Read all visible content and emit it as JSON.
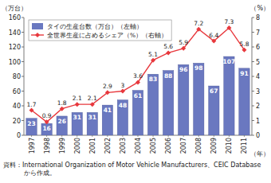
{
  "chart_data": {
    "type": "bar",
    "categories": [
      "1997",
      "1998",
      "1999",
      "2000",
      "2001",
      "2002",
      "2003",
      "2004",
      "2005",
      "2006",
      "2007",
      "2008",
      "2009",
      "2010",
      "2011"
    ],
    "series": [
      {
        "name": "タイの生産台数（万台）（左軸）",
        "type": "bar",
        "color": "#6a78c0",
        "values": [
          23,
          16,
          26,
          31,
          31,
          41,
          48,
          61,
          83,
          88,
          96,
          98,
          67,
          107,
          91
        ]
      },
      {
        "name": "全世界生産に占めるシェア（%）（右軸）",
        "type": "line",
        "axis": "y2",
        "color": "#e8383d",
        "marker": "diamond",
        "values": [
          1.7,
          0.9,
          1.8,
          2.1,
          2.1,
          2.9,
          3.0,
          3.6,
          5.1,
          5.6,
          5.9,
          7.2,
          6.4,
          7.3,
          5.8
        ]
      }
    ],
    "y_label": "（万台）",
    "y2_label": "（%）",
    "x_label": "（年）",
    "source": "資料：International Organization of Motor Vehicle Manufacturers、CEIC Database から作成。",
    "ylim": [
      0,
      160
    ],
    "yticks": [
      0,
      20,
      40,
      60,
      80,
      100,
      120,
      140,
      160
    ],
    "y2lim": [
      0,
      8
    ],
    "y2ticks": [
      0,
      1,
      2,
      3,
      4,
      5,
      6,
      7,
      8
    ],
    "grid": false,
    "data_labels": true,
    "legend": "top-left"
  }
}
